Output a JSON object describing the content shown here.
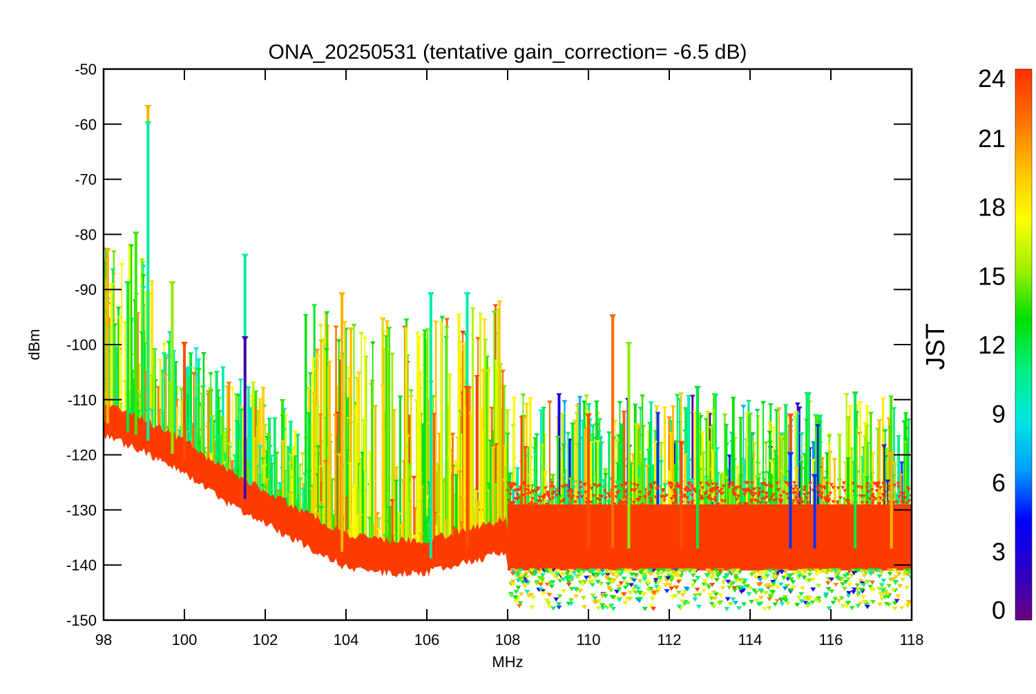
{
  "chart_data": {
    "type": "scatter",
    "title": "ONA_20250531 (tentative gain_correction= -6.5 dB)",
    "xlabel": "MHz",
    "ylabel": "dBm",
    "xlim": [
      98,
      118
    ],
    "ylim": [
      -150,
      -50
    ],
    "x_ticks": [
      "98",
      "100",
      "102",
      "104",
      "106",
      "108",
      "110",
      "112",
      "114",
      "116",
      "118"
    ],
    "x_tick_values": [
      98,
      100,
      102,
      104,
      106,
      108,
      110,
      112,
      114,
      116,
      118
    ],
    "y_ticks": [
      "-50",
      "-60",
      "-70",
      "-80",
      "-90",
      "-100",
      "-110",
      "-120",
      "-130",
      "-140",
      "-150"
    ],
    "y_tick_values": [
      -50,
      -60,
      -70,
      -80,
      -90,
      -100,
      -110,
      -120,
      -130,
      -140,
      -150
    ],
    "marker": "down-triangle",
    "grid": false,
    "colorbar": {
      "label": "JST",
      "range": [
        0,
        24
      ],
      "ticks": [
        "24",
        "21",
        "18",
        "15",
        "12",
        "9",
        "6",
        "3",
        "0"
      ],
      "tick_values": [
        24,
        21,
        18,
        15,
        12,
        9,
        6,
        3,
        0
      ],
      "colormap": "rainbow",
      "colors": [
        "#6a0080",
        "#2a00c8",
        "#0000ff",
        "#00a0ff",
        "#00e8e0",
        "#00f080",
        "#00e000",
        "#a0f000",
        "#ffff00",
        "#ffc000",
        "#ff7000",
        "#ff3000"
      ]
    },
    "noise_floor": [
      {
        "x": 98.0,
        "y": -114
      },
      {
        "x": 99.0,
        "y": -117
      },
      {
        "x": 100.0,
        "y": -121
      },
      {
        "x": 101.0,
        "y": -126
      },
      {
        "x": 102.0,
        "y": -130
      },
      {
        "x": 103.0,
        "y": -134
      },
      {
        "x": 104.0,
        "y": -138
      },
      {
        "x": 105.0,
        "y": -139
      },
      {
        "x": 106.0,
        "y": -139
      },
      {
        "x": 107.0,
        "y": -137
      },
      {
        "x": 108.0,
        "y": -135
      },
      {
        "x": 108.0,
        "y": -137
      },
      {
        "x": 118.0,
        "y": -137
      }
    ],
    "peaks": [
      {
        "x": 98.0,
        "y": -85,
        "jst": 20
      },
      {
        "x": 98.1,
        "y": -83,
        "jst": 20
      },
      {
        "x": 98.6,
        "y": -89,
        "jst": 12
      },
      {
        "x": 98.8,
        "y": -80,
        "jst": 14
      },
      {
        "x": 99.1,
        "y": -57,
        "jst": 20
      },
      {
        "x": 99.1,
        "y": -60,
        "jst": 10
      },
      {
        "x": 99.7,
        "y": -89,
        "jst": 15
      },
      {
        "x": 100.0,
        "y": -100,
        "jst": 23
      },
      {
        "x": 101.5,
        "y": -84,
        "jst": 10
      },
      {
        "x": 101.5,
        "y": -99,
        "jst": 1
      },
      {
        "x": 103.9,
        "y": -91,
        "jst": 20
      },
      {
        "x": 106.1,
        "y": -91,
        "jst": 10
      },
      {
        "x": 107.0,
        "y": -91,
        "jst": 10
      },
      {
        "x": 107.0,
        "y": -108,
        "jst": 23
      },
      {
        "x": 110.0,
        "y": -113,
        "jst": 23
      },
      {
        "x": 110.6,
        "y": -95,
        "jst": 22
      },
      {
        "x": 111.0,
        "y": -100,
        "jst": 15
      },
      {
        "x": 112.3,
        "y": -118,
        "jst": 23
      },
      {
        "x": 112.7,
        "y": -108,
        "jst": 12
      },
      {
        "x": 115.0,
        "y": -113,
        "jst": 23
      },
      {
        "x": 115.0,
        "y": -120,
        "jst": 5
      },
      {
        "x": 115.6,
        "y": -124,
        "jst": 5
      },
      {
        "x": 116.6,
        "y": -109,
        "jst": 12
      },
      {
        "x": 117.5,
        "y": -120,
        "jst": 20
      }
    ]
  }
}
